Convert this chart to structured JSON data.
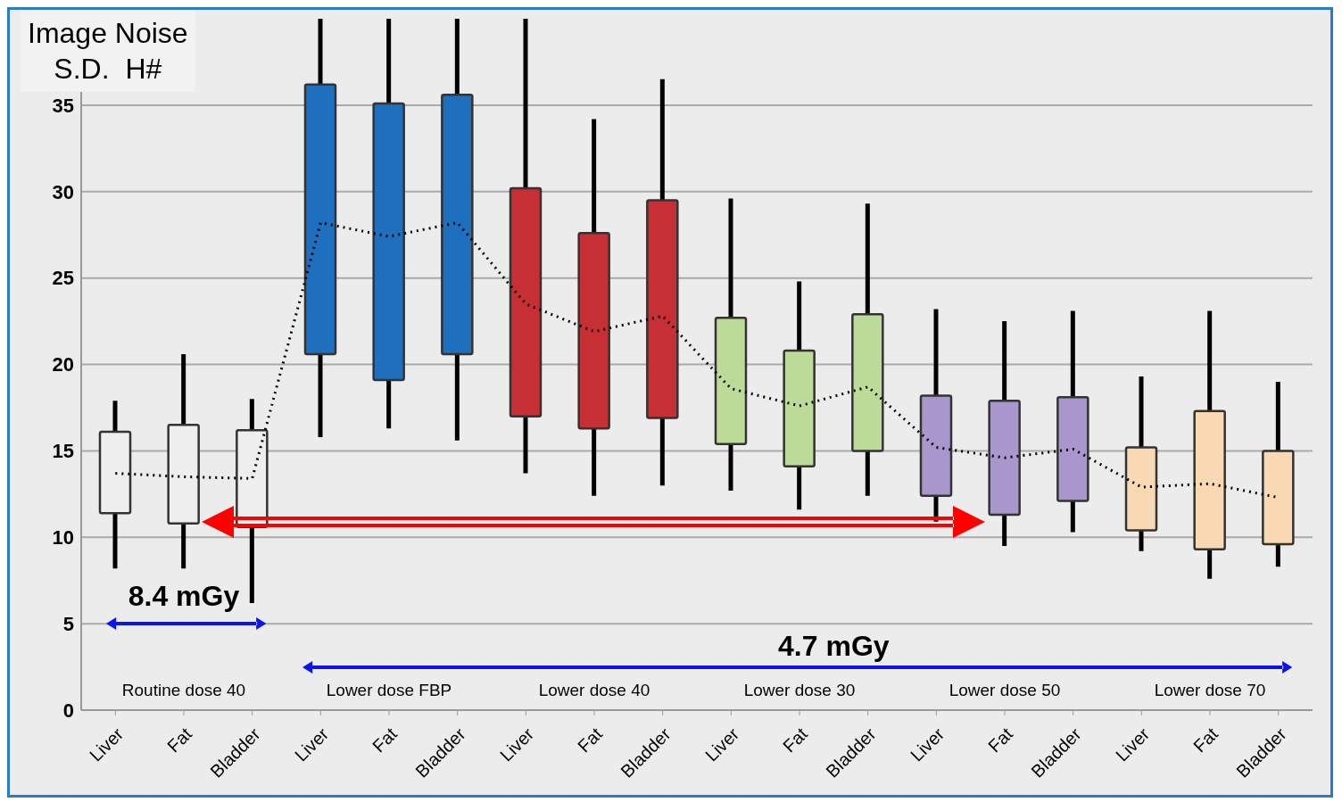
{
  "chart_data": {
    "type": "box",
    "ylabel": "Image Noise\nS.D.  H#",
    "categories": [
      "Liver",
      "Fat",
      "Bladder",
      "Liver",
      "Fat",
      "Bladder",
      "Liver",
      "Fat",
      "Bladder",
      "Liver",
      "Fat",
      "Bladder",
      "Liver",
      "Fat",
      "Bladder",
      "Liver",
      "Fat",
      "Bladder"
    ],
    "boxes": [
      {
        "low": 8.2,
        "q1": 11.4,
        "q3": 16.1,
        "high": 17.9
      },
      {
        "low": 8.2,
        "q1": 10.8,
        "q3": 16.5,
        "high": 20.6
      },
      {
        "low": 6.2,
        "q1": 10.6,
        "q3": 16.2,
        "high": 18.0
      },
      {
        "low": 15.8,
        "q1": 20.6,
        "q3": 36.2,
        "high": 40
      },
      {
        "low": 16.3,
        "q1": 19.1,
        "q3": 35.1,
        "high": 40
      },
      {
        "low": 15.6,
        "q1": 20.6,
        "q3": 35.6,
        "high": 40
      },
      {
        "low": 13.7,
        "q1": 17.0,
        "q3": 30.2,
        "high": 40
      },
      {
        "low": 12.4,
        "q1": 16.3,
        "q3": 27.6,
        "high": 34.2
      },
      {
        "low": 13.0,
        "q1": 16.9,
        "q3": 29.5,
        "high": 36.5
      },
      {
        "low": 12.7,
        "q1": 15.4,
        "q3": 22.7,
        "high": 29.6
      },
      {
        "low": 11.6,
        "q1": 14.1,
        "q3": 20.8,
        "high": 24.8
      },
      {
        "low": 12.4,
        "q1": 15.0,
        "q3": 22.9,
        "high": 29.3
      },
      {
        "low": 10.9,
        "q1": 12.4,
        "q3": 18.2,
        "high": 23.2
      },
      {
        "low": 9.5,
        "q1": 11.3,
        "q3": 17.9,
        "high": 22.5
      },
      {
        "low": 10.3,
        "q1": 12.1,
        "q3": 18.1,
        "high": 23.1
      },
      {
        "low": 9.2,
        "q1": 10.4,
        "q3": 15.2,
        "high": 19.3
      },
      {
        "low": 7.6,
        "q1": 9.3,
        "q3": 17.3,
        "high": 23.1
      },
      {
        "low": 8.3,
        "q1": 9.6,
        "q3": 15.0,
        "high": 19.0
      }
    ],
    "colors": [
      "#eeeeee",
      "#eeeeee",
      "#eeeeee",
      "#1f6fbf",
      "#1f6fbf",
      "#1f6fbf",
      "#c62f33",
      "#c62f33",
      "#c62f33",
      "#bcdb98",
      "#bcdb98",
      "#bcdb98",
      "#a996cc",
      "#a996cc",
      "#a996cc",
      "#f8d9b4",
      "#f8d9b4",
      "#f8d9b4"
    ],
    "series": [
      {
        "type": "line",
        "color": "#000000",
        "line_style": "dotted",
        "marker": "none",
        "values": [
          13.7,
          13.5,
          13.4,
          28.2,
          27.4,
          28.2,
          23.5,
          21.9,
          22.8,
          18.6,
          17.6,
          18.7,
          15.2,
          14.6,
          15.1,
          12.9,
          13.1,
          12.3
        ]
      }
    ],
    "annotations": [
      "Routine dose 40",
      "Lower dose FBP",
      "Lower dose 40",
      "Lower dose 30",
      "Lower dose 50",
      "Lower dose 70",
      "8.4 mGy",
      "4.7 mGy"
    ],
    "ylim": [
      0,
      40
    ],
    "yticks": [
      0,
      5,
      10,
      15,
      20,
      25,
      30,
      35
    ],
    "grid": "y"
  }
}
